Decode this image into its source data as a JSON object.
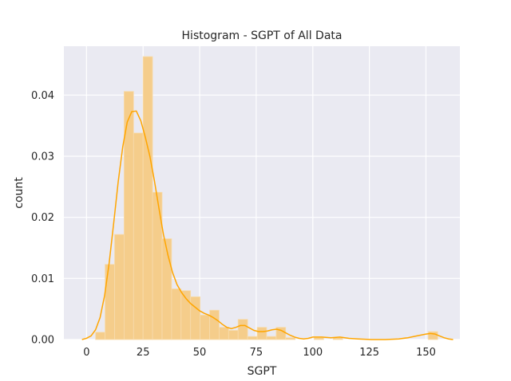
{
  "chart_data": {
    "type": "bar",
    "title": "Histogram - SGPT of All Data",
    "xlabel": "SGPT",
    "ylabel": "count",
    "xlim": [
      -10,
      165
    ],
    "ylim": [
      0,
      0.048
    ],
    "x_ticks": [
      0,
      25,
      50,
      75,
      100,
      125,
      150
    ],
    "y_ticks": [
      0.0,
      0.01,
      0.02,
      0.03,
      0.04
    ],
    "y_tick_labels": [
      "0.00",
      "0.01",
      "0.02",
      "0.03",
      "0.04"
    ],
    "x_tick_labels": [
      "0",
      "25",
      "50",
      "75",
      "100",
      "125",
      "150"
    ],
    "grid": true,
    "colors": {
      "background": "#eaeaf2",
      "grid": "#ffffff",
      "bar_fill": "#f5cd8b",
      "bar_edge": "#f7dcae",
      "kde_line": "#ffa500"
    },
    "bin_width": 4.2,
    "bins": [
      {
        "x0": 4.0,
        "height": 0.0012
      },
      {
        "x0": 8.2,
        "height": 0.0123
      },
      {
        "x0": 12.4,
        "height": 0.0172
      },
      {
        "x0": 16.6,
        "height": 0.0406
      },
      {
        "x0": 20.8,
        "height": 0.0338
      },
      {
        "x0": 25.0,
        "height": 0.0463
      },
      {
        "x0": 29.2,
        "height": 0.0241
      },
      {
        "x0": 33.4,
        "height": 0.0165
      },
      {
        "x0": 37.6,
        "height": 0.0083
      },
      {
        "x0": 41.8,
        "height": 0.008
      },
      {
        "x0": 46.0,
        "height": 0.007
      },
      {
        "x0": 50.2,
        "height": 0.004
      },
      {
        "x0": 54.4,
        "height": 0.0048
      },
      {
        "x0": 58.6,
        "height": 0.002
      },
      {
        "x0": 62.8,
        "height": 0.0015
      },
      {
        "x0": 67.0,
        "height": 0.0033
      },
      {
        "x0": 71.2,
        "height": 0.0005
      },
      {
        "x0": 75.4,
        "height": 0.002
      },
      {
        "x0": 79.6,
        "height": 0.0005
      },
      {
        "x0": 83.8,
        "height": 0.002
      },
      {
        "x0": 88.0,
        "height": 0.0003
      },
      {
        "x0": 100.6,
        "height": 0.0003
      },
      {
        "x0": 109.0,
        "height": 0.0003
      },
      {
        "x0": 151.0,
        "height": 0.0013
      }
    ],
    "kde": {
      "x": [
        -2,
        0,
        2,
        4,
        6,
        8,
        10,
        12,
        14,
        16,
        18,
        20,
        22,
        24,
        26,
        28,
        30,
        32,
        34,
        36,
        38,
        40,
        42,
        44,
        46,
        48,
        50,
        52,
        54,
        56,
        58,
        60,
        62,
        64,
        66,
        68,
        70,
        72,
        74,
        76,
        78,
        80,
        82,
        84,
        86,
        88,
        90,
        92,
        94,
        96,
        98,
        100,
        104,
        108,
        112,
        116,
        120,
        126,
        132,
        138,
        142,
        146,
        150,
        152,
        154,
        156,
        158,
        160,
        162
      ],
      "y": [
        0.0,
        0.0002,
        0.0006,
        0.0016,
        0.0036,
        0.0072,
        0.0125,
        0.019,
        0.0258,
        0.0315,
        0.0356,
        0.0373,
        0.0374,
        0.0358,
        0.0331,
        0.03,
        0.026,
        0.0215,
        0.0172,
        0.0138,
        0.011,
        0.009,
        0.0077,
        0.0067,
        0.0059,
        0.0053,
        0.0047,
        0.0043,
        0.004,
        0.0036,
        0.0031,
        0.0025,
        0.002,
        0.0018,
        0.002,
        0.0023,
        0.0023,
        0.0019,
        0.0015,
        0.0013,
        0.0013,
        0.0014,
        0.0016,
        0.0017,
        0.0015,
        0.0011,
        0.0007,
        0.0004,
        0.0002,
        0.0001,
        0.0002,
        0.0004,
        0.0004,
        0.0003,
        0.0004,
        0.0002,
        0.0001,
        0.0,
        0.0,
        0.0001,
        0.0003,
        0.0006,
        0.0009,
        0.001,
        0.0009,
        0.0006,
        0.0003,
        0.0001,
        0.0
      ]
    }
  }
}
